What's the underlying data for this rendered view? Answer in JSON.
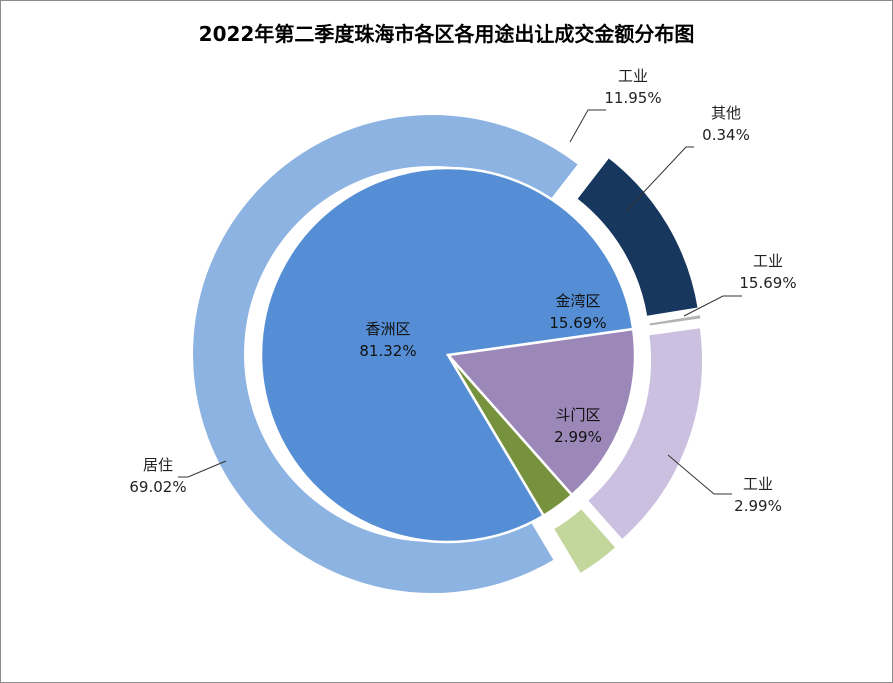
{
  "chart_data": {
    "type": "pie",
    "subtype": "nested-donut",
    "title": "2022年第二季度珠海市各区各用途出让成交金额分布图",
    "inner_ring": {
      "name": "区",
      "slices": [
        {
          "label": "金湾区",
          "value": 15.69,
          "display": "15.69%",
          "color": "#9b88b8"
        },
        {
          "label": "斗门区",
          "value": 2.99,
          "display": "2.99%",
          "color": "#76923c"
        },
        {
          "label": "香洲区",
          "value": 81.32,
          "display": "81.32%",
          "color": "#558ed5"
        }
      ]
    },
    "outer_ring": {
      "name": "用途",
      "slices": [
        {
          "label": "工业",
          "value": 15.69,
          "display": "15.69%",
          "color": "#ccc0e0",
          "parent": "金湾区"
        },
        {
          "label": "工业",
          "value": 2.99,
          "display": "2.99%",
          "color": "#c3d69b",
          "parent": "斗门区"
        },
        {
          "label": "居住",
          "value": 69.02,
          "display": "69.02%",
          "color": "#8db3e2",
          "parent": "香洲区"
        },
        {
          "label": "工业",
          "value": 11.95,
          "display": "11.95%",
          "color": "#17375e",
          "parent": "香洲区"
        },
        {
          "label": "其他",
          "value": 0.34,
          "display": "0.34%",
          "color": "#b3b3b3",
          "parent": "香洲区"
        }
      ]
    },
    "legend": "none"
  }
}
